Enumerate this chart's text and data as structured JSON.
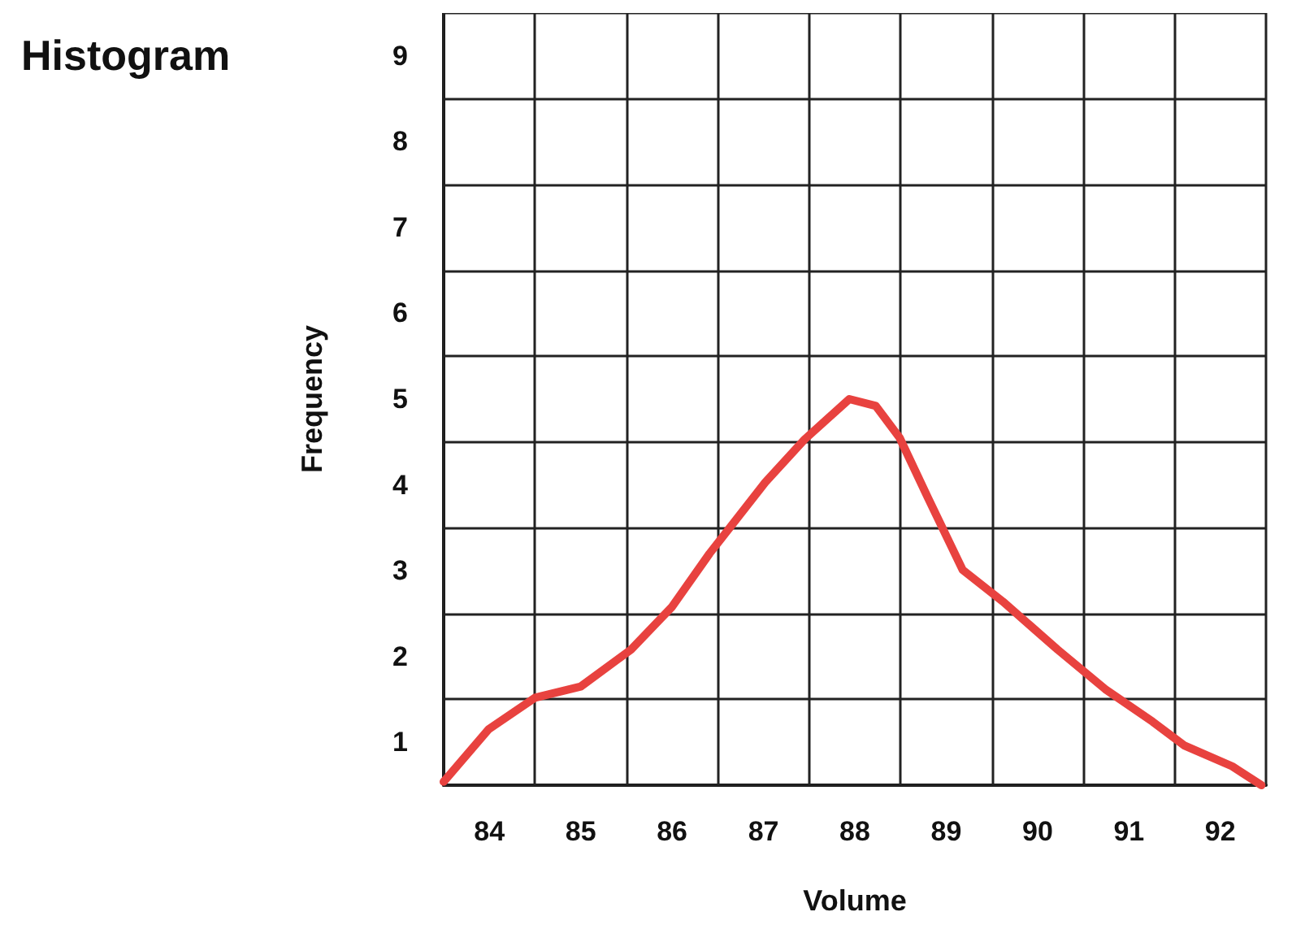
{
  "chart_data": {
    "type": "line",
    "title": "Histogram",
    "xlabel": "Volume",
    "ylabel": "Frequency",
    "xlim": [
      83.5,
      92.5
    ],
    "xticks": [
      84,
      85,
      86,
      87,
      88,
      89,
      90,
      91,
      92
    ],
    "ylim": [
      0.5,
      9.5
    ],
    "yticks": [
      1,
      2,
      3,
      4,
      5,
      6,
      7,
      8,
      9
    ],
    "grid": true,
    "marker": "none",
    "line_style": "solid",
    "series": [
      {
        "color": "#e8423f",
        "x": [
          83.5,
          83.99,
          84.5,
          85.0,
          85.55,
          86.0,
          86.41,
          87.02,
          87.45,
          87.94,
          88.23,
          88.49,
          88.8,
          89.18,
          89.62,
          90.22,
          90.74,
          91.26,
          91.61,
          92.13,
          92.45
        ],
        "values": [
          0.54,
          1.15,
          1.52,
          1.65,
          2.08,
          2.58,
          3.2,
          4.03,
          4.53,
          5.0,
          4.92,
          4.55,
          3.85,
          3.01,
          2.64,
          2.08,
          1.62,
          1.24,
          0.96,
          0.72,
          0.5
        ]
      }
    ]
  }
}
